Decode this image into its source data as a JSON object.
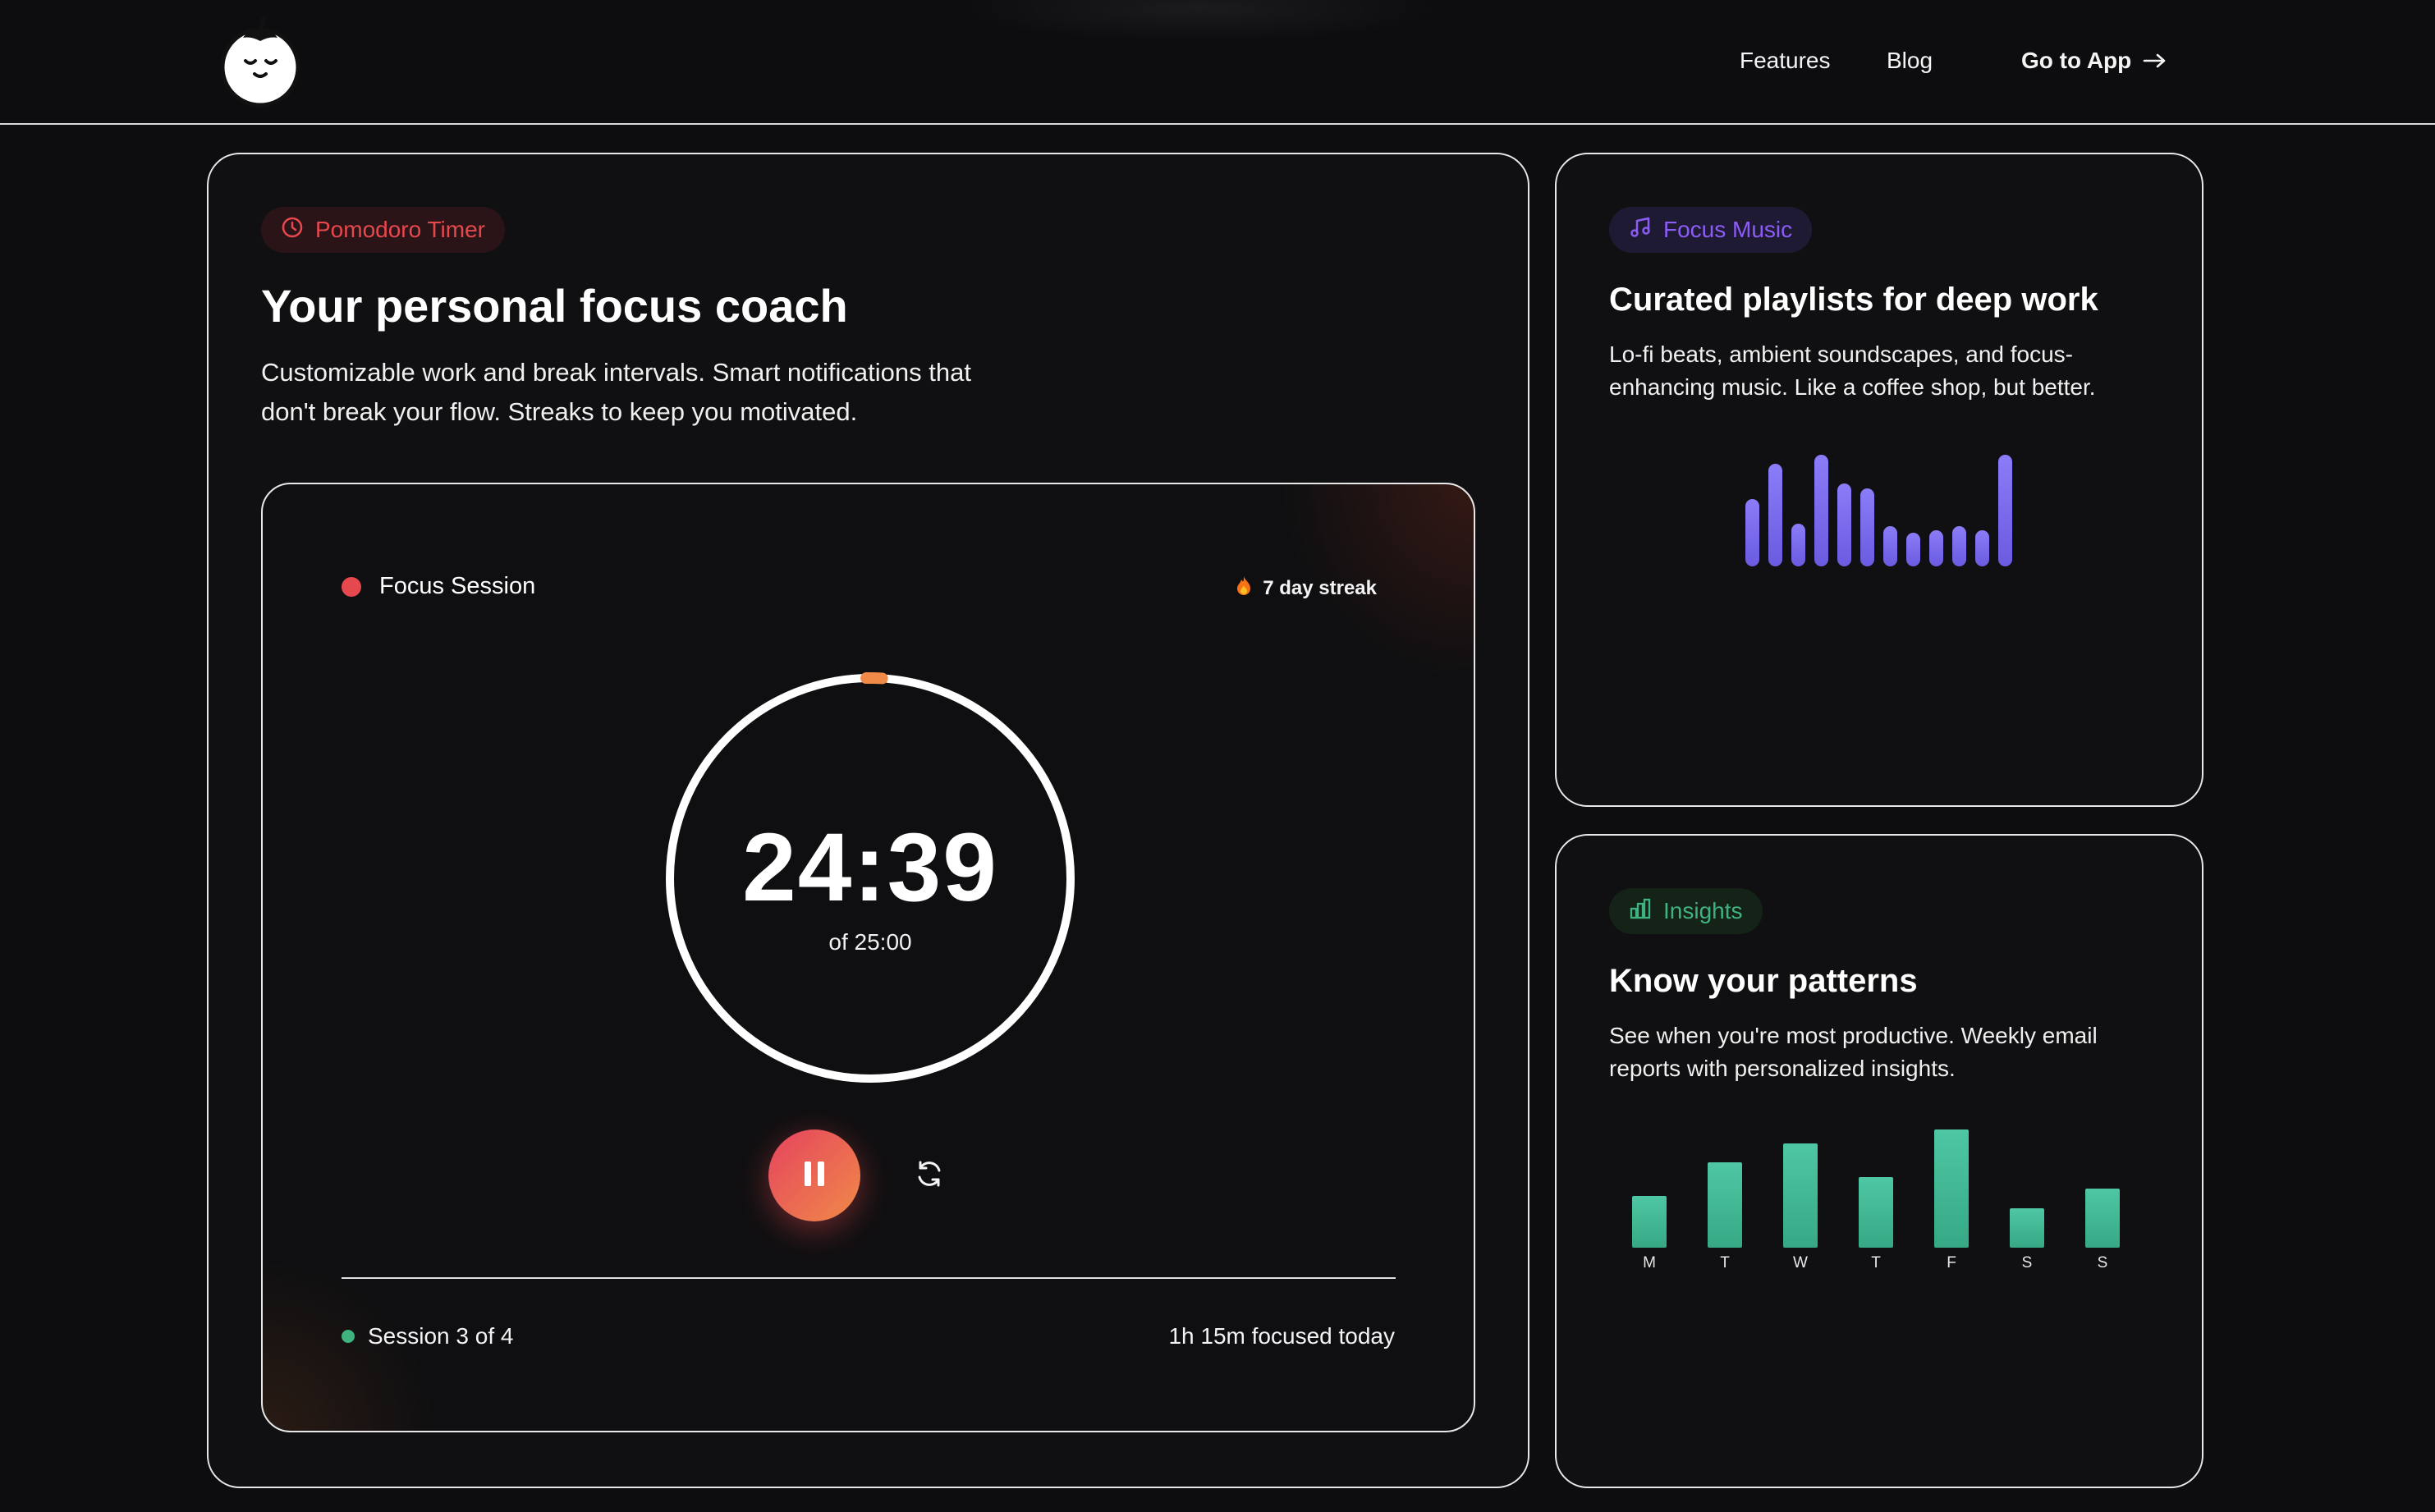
{
  "nav": {
    "features": "Features",
    "blog": "Blog",
    "cta": "Go to App"
  },
  "main": {
    "pill": "Pomodoro Timer",
    "title": "Your personal focus coach",
    "description": "Customizable work and break intervals. Smart notifications that don't break your flow. Streaks to keep you motivated.",
    "timer": {
      "session_label": "Focus Session",
      "streak": "7 day streak",
      "time_remaining": "24:39",
      "time_total": "of 25:00",
      "progress_remaining_fraction": 0.986,
      "session_count": "Session 3 of 4",
      "focused_today": "1h 15m focused today"
    }
  },
  "music": {
    "pill": "Focus Music",
    "title": "Curated playlists for deep work",
    "description": "Lo-fi beats, ambient soundscapes, and focus-enhancing music. Like a coffee shop, but better.",
    "equalizer_levels": [
      0.6,
      0.92,
      0.38,
      1.0,
      0.74,
      0.7,
      0.36,
      0.3,
      0.32,
      0.36,
      0.32,
      1.0
    ]
  },
  "insights": {
    "pill": "Insights",
    "title": "Know your patterns",
    "description": "See when you're most productive. Weekly email reports with personalized insights.",
    "chart_data": {
      "type": "bar",
      "categories": [
        "M",
        "T",
        "W",
        "T",
        "F",
        "S",
        "S"
      ],
      "values": [
        0.44,
        0.72,
        0.88,
        0.6,
        1.0,
        0.33,
        0.5
      ],
      "xlabel": "",
      "ylabel": "",
      "ylim": [
        0,
        1
      ],
      "grid": false
    }
  },
  "colors": {
    "accent_red": "#e5484d",
    "accent_orange": "#f08a48",
    "accent_purple": "#8b5cf6",
    "accent_green": "#3fb37f",
    "background": "#0d0d0f"
  },
  "icons": {
    "logo": "tomato-mascot-logo",
    "pomodoro_pill": "clock-icon",
    "music_pill": "music-note-icon",
    "insights_pill": "bar-chart-icon",
    "streak": "fire-icon",
    "pause": "pause-icon",
    "reset": "refresh-icon",
    "cta_arrow": "arrow-right-icon"
  }
}
